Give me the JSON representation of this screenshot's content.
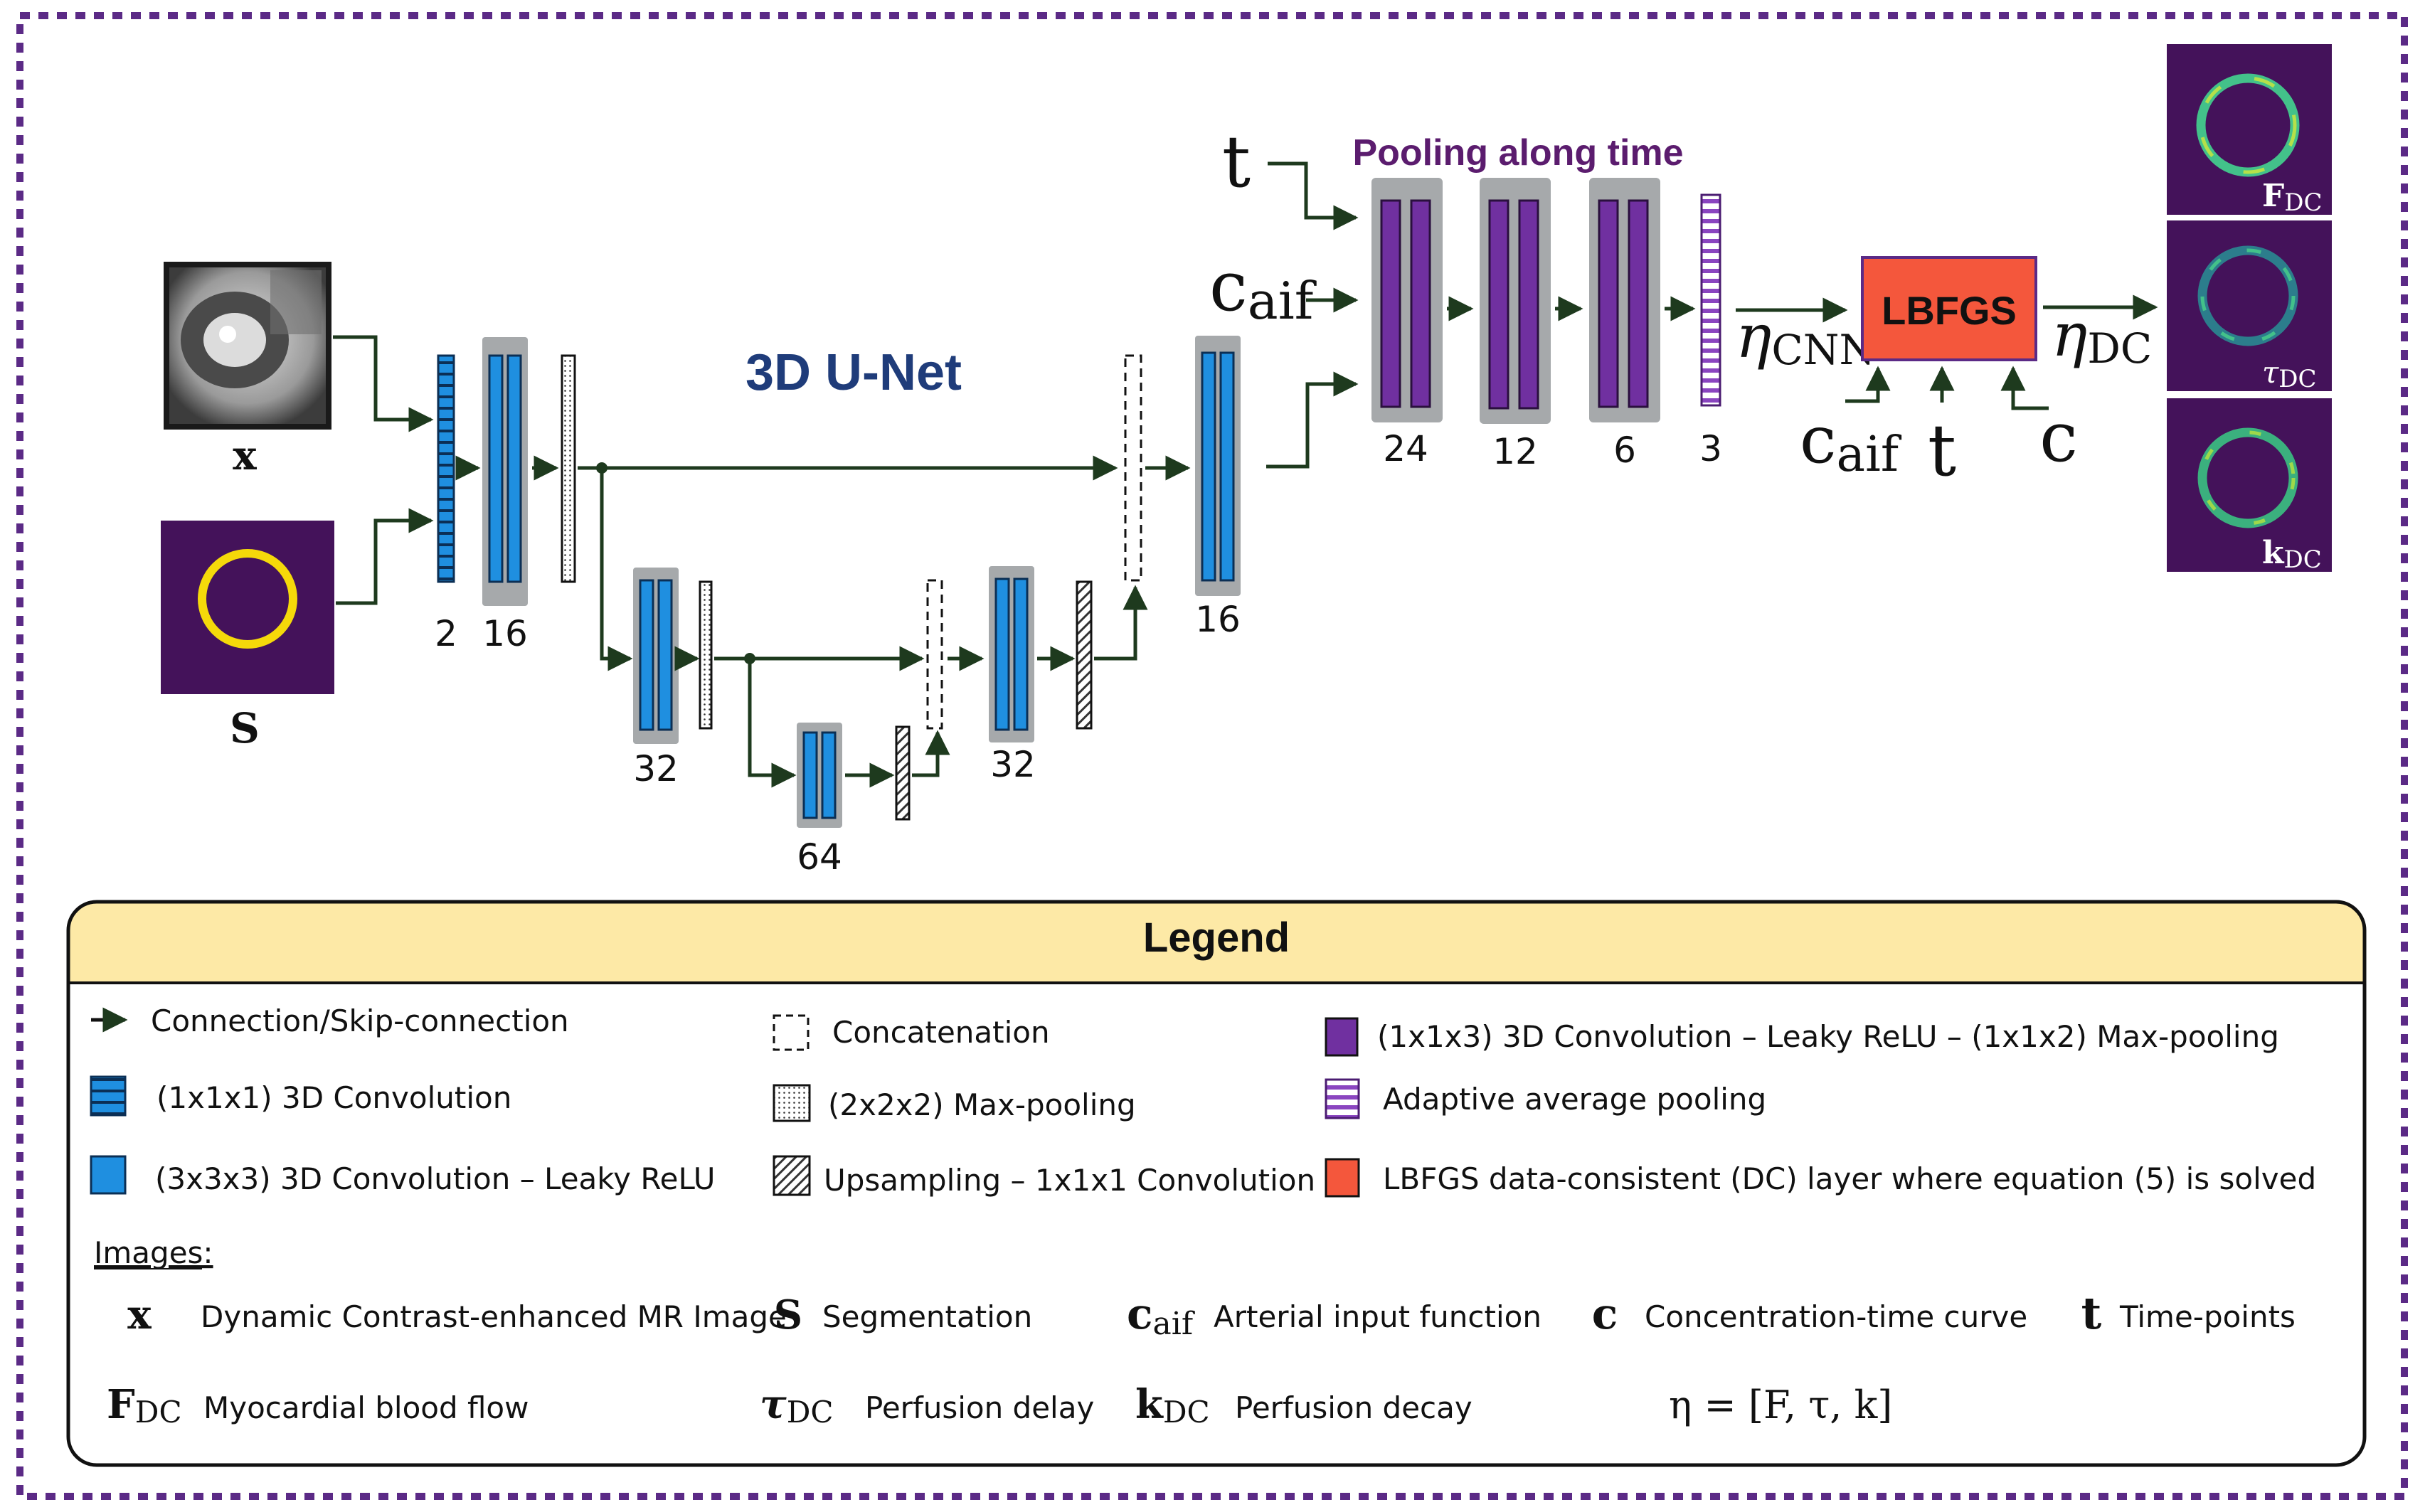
{
  "diagram": {
    "unet_title": "3D U-Net",
    "pooling_title": "Pooling along time",
    "lbfgs_label": "LBFGS",
    "inputs": {
      "x_label": "x",
      "s_label": "S",
      "t_label": "t",
      "caif_base": "c",
      "caif_sub": "aif",
      "c_label": "c"
    },
    "eta_cnn_base": "η",
    "eta_cnn_sub": "CNN",
    "eta_dc_base": "η",
    "eta_dc_sub": "DC",
    "unet_channels": {
      "input": "2",
      "enc1": "16",
      "enc2": "32",
      "bottleneck": "64",
      "dec2": "32",
      "dec1": "16"
    },
    "pooling_channels": [
      "24",
      "12",
      "6",
      "3"
    ],
    "outputs": [
      {
        "base": "F",
        "sub": "DC"
      },
      {
        "base": "τ",
        "sub": "DC"
      },
      {
        "base": "k",
        "sub": "DC"
      }
    ],
    "colors": {
      "border": "#5b2a86",
      "conv_blue": "#1f8fe0",
      "purple": "#7030a0",
      "block_gray": "#a6a9ab",
      "lbfgs": "#f4573c",
      "arrow": "#1e3a1e",
      "unet_title": "#1f3c7a",
      "pooling_title": "#5b1c6e",
      "legend_header": "#fde9a6"
    }
  },
  "legend": {
    "title": "Legend",
    "items": [
      {
        "label": "Connection/Skip-connection",
        "icon": "arrow-icon"
      },
      {
        "label": "Concatenation",
        "icon": "dashed-box-icon"
      },
      {
        "label": "(1x1x3) 3D Convolution – Leaky ReLU – (1x1x2) Max-pooling",
        "icon": "purple-box-icon"
      },
      {
        "label": "(1x1x1) 3D Convolution",
        "icon": "striped-blue-box-icon"
      },
      {
        "label": "(2x2x2) Max-pooling",
        "icon": "dotted-box-icon"
      },
      {
        "label": "Adaptive average pooling",
        "icon": "striped-purple-box-icon"
      },
      {
        "label": "(3x3x3) 3D Convolution – Leaky ReLU",
        "icon": "blue-box-icon"
      },
      {
        "label": "Upsampling – 1x1x1 Convolution",
        "icon": "hatched-box-icon"
      },
      {
        "label": "LBFGS data-consistent (DC) layer where equation (5) is solved",
        "icon": "red-box-icon"
      }
    ],
    "images_heading": "Images:",
    "symbols": [
      {
        "symbol": "x",
        "sub": "",
        "desc": "Dynamic Contrast-enhanced MR Image"
      },
      {
        "symbol": "S",
        "sub": "",
        "desc": "Segmentation"
      },
      {
        "symbol": "c",
        "sub": "aif",
        "desc": "Arterial input function"
      },
      {
        "symbol": "c",
        "sub": "",
        "desc": "Concentration-time curve"
      },
      {
        "symbol": "t",
        "sub": "",
        "desc": "Time-points"
      },
      {
        "symbol": "F",
        "sub": "DC",
        "desc": "Myocardial blood flow"
      },
      {
        "symbol": "τ",
        "sub": "DC",
        "desc": "Perfusion delay"
      },
      {
        "symbol": "k",
        "sub": "DC",
        "desc": "Perfusion decay"
      }
    ],
    "eta_equation": "η = [F, τ, k]"
  }
}
